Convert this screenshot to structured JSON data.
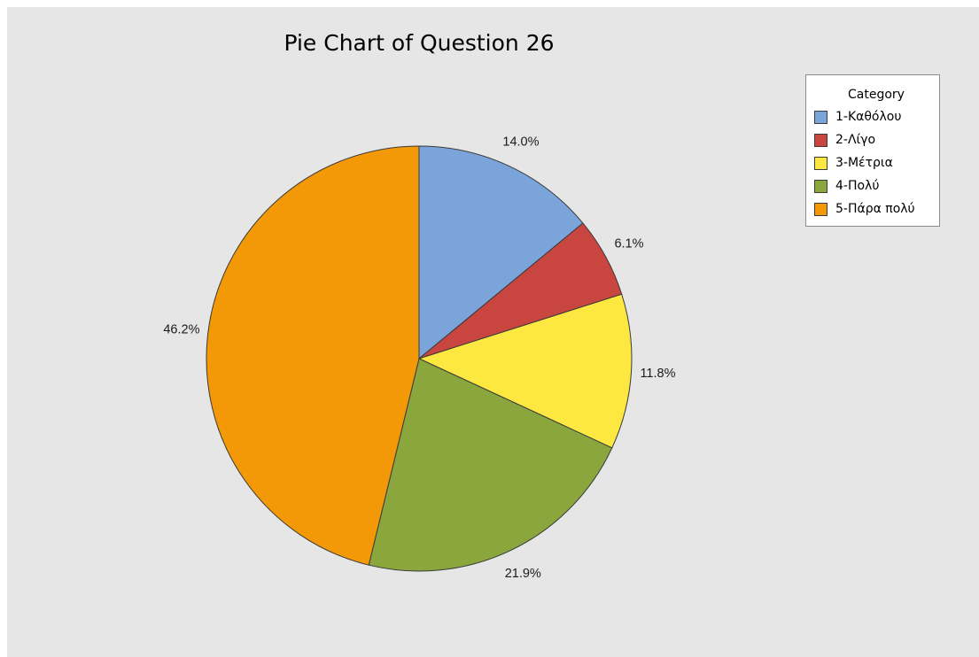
{
  "chart_data": {
    "type": "pie",
    "title": "Pie Chart of Question 26",
    "legend_title": "Category",
    "legend_position": "top-right",
    "start_angle": "12 o'clock",
    "direction": "clockwise",
    "slices": [
      {
        "label": "1-Καθόλου",
        "value": 14.0,
        "value_label": "14.0%",
        "color": "#7ba5da"
      },
      {
        "label": "2-Λίγο",
        "value": 6.1,
        "value_label": "6.1%",
        "color": "#c94640"
      },
      {
        "label": "3-Μέτρια",
        "value": 11.8,
        "value_label": "11.8%",
        "color": "#fde842"
      },
      {
        "label": "4-Πολύ",
        "value": 21.9,
        "value_label": "21.9%",
        "color": "#8aa63c"
      },
      {
        "label": "5-Πάρα πολύ",
        "value": 46.2,
        "value_label": "46.2%",
        "color": "#f39806"
      }
    ]
  }
}
